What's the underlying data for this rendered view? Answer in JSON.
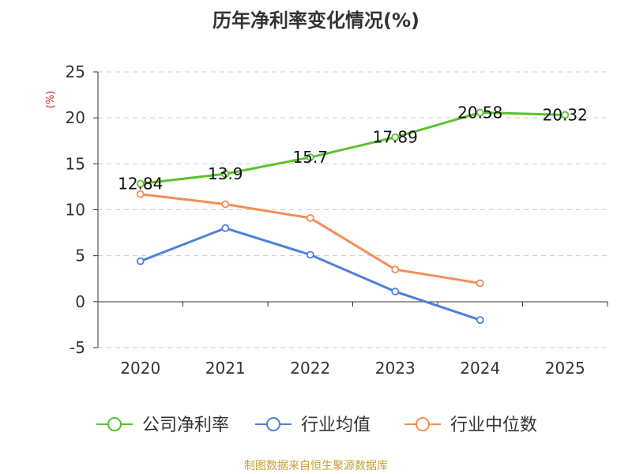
{
  "chart_data": {
    "type": "line",
    "title": "历年净利率变化情况(%)",
    "ylabel": "(%)",
    "xlabel": "",
    "ylim": [
      -5,
      25
    ],
    "yticks": [
      -5,
      0,
      5,
      10,
      15,
      20,
      25
    ],
    "categories": [
      "2020",
      "2021",
      "2022",
      "2023",
      "2024",
      "2025"
    ],
    "grid": true,
    "legend_position": "bottom",
    "series": [
      {
        "name": "公司净利率",
        "color": "#5cc12e",
        "show_labels": true,
        "values": [
          12.84,
          13.9,
          15.7,
          17.89,
          20.58,
          20.32
        ],
        "labels": [
          "12.84",
          "13.9",
          "15.7",
          "17.89",
          "20.58",
          "20.32"
        ]
      },
      {
        "name": "行业均值",
        "color": "#4e7fdc",
        "show_labels": false,
        "values": [
          4.4,
          8.0,
          5.1,
          1.1,
          -2.0,
          null
        ]
      },
      {
        "name": "行业中位数",
        "color": "#f58d56",
        "show_labels": false,
        "values": [
          11.7,
          10.6,
          9.1,
          3.5,
          2.0,
          null
        ]
      }
    ]
  },
  "source": "制图数据来自恒生聚源数据库"
}
